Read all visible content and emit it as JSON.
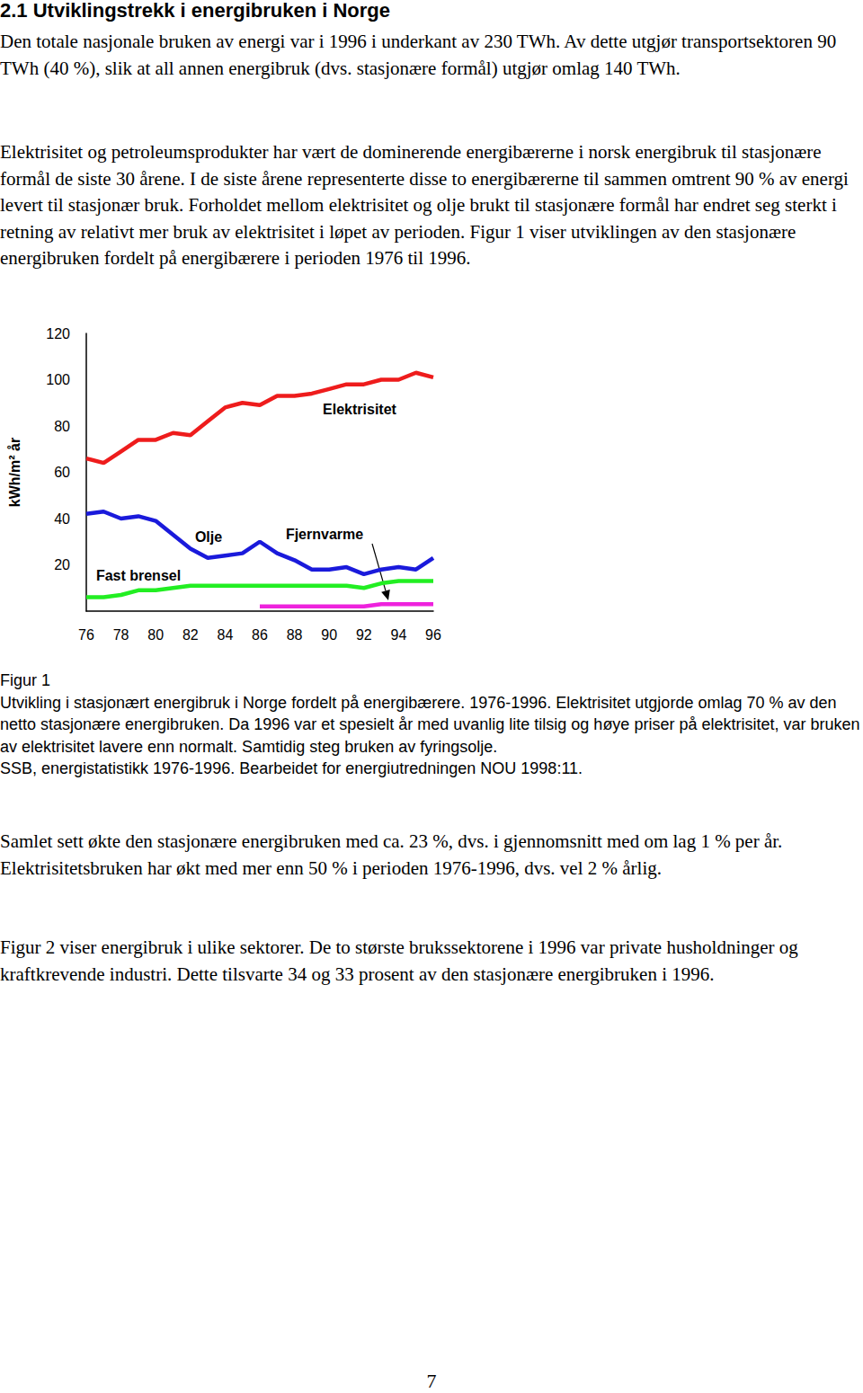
{
  "heading": "2.1 Utviklingstrekk i energibruken i Norge",
  "paragraphs_before": [
    "Den totale nasjonale bruken av energi var i 1996 i underkant av 230 TWh. Av dette utgjør transportsektoren 90 TWh (40 %), slik at all annen energibruk (dvs. stasjonære formål) utgjør omlag 140 TWh.",
    "Elektrisitet og petroleumsprodukter har vært de dominerende energibærerne i norsk energibruk til stasjonære formål de siste 30 årene. I de siste årene representerte disse to energibærerne til sammen omtrent 90 % av energi levert til stasjonær bruk. Forholdet mellom elektrisitet og olje brukt til stasjonære formål har endret seg sterkt i retning av relativt mer bruk av elektrisitet i løpet av perioden. Figur 1 viser utviklingen av den stasjonære energibruken fordelt på energibærere i perioden 1976 til 1996."
  ],
  "chart_data": {
    "type": "line",
    "y_label": "kWh/m² år",
    "categories": [
      "76",
      null,
      "78",
      null,
      "80",
      null,
      "82",
      null,
      "84",
      null,
      "86",
      null,
      "88",
      null,
      "90",
      null,
      "92",
      null,
      "94",
      null,
      "96"
    ],
    "series": [
      {
        "name": "Elektrisitet",
        "color": "#ee1c1c",
        "values": [
          66,
          64,
          69,
          74,
          74,
          77,
          76,
          82,
          88,
          90,
          89,
          93,
          93,
          94,
          96,
          98,
          98,
          100,
          100,
          103,
          101
        ]
      },
      {
        "name": "Olje",
        "color": "#1a1adb",
        "values": [
          42,
          43,
          40,
          41,
          39,
          33,
          27,
          23,
          24,
          25,
          30,
          25,
          22,
          18,
          18,
          19,
          16,
          18,
          19,
          18,
          23
        ]
      },
      {
        "name": "Fast brensel",
        "color": "#22ee22",
        "values": [
          6,
          6,
          7,
          9,
          9,
          10,
          11,
          11,
          11,
          11,
          11,
          11,
          11,
          11,
          11,
          11,
          10,
          12,
          13,
          13,
          13
        ]
      },
      {
        "name": "Fjernvarme",
        "color": "#ee22dd",
        "values": [
          null,
          null,
          null,
          null,
          null,
          null,
          null,
          null,
          null,
          null,
          2,
          2,
          2,
          2,
          2,
          2,
          2,
          3,
          3,
          3,
          3
        ]
      }
    ],
    "ylim": [
      0,
      120
    ],
    "yticks": [
      20,
      40,
      60,
      80,
      100,
      120
    ],
    "grid": false
  },
  "caption": [
    "Figur 1",
    "Utvikling i stasjonært energibruk i Norge fordelt på energibærere. 1976-1996. Elektrisitet utgjorde omlag 70 % av den netto stasjonære energibruken. Da 1996 var et spesielt år med uvanlig lite tilsig og høye priser på elektrisitet, var bruken av elektrisitet lavere enn normalt. Samtidig steg bruken av fyringsolje.",
    "SSB, energistatistikk 1976-1996. Bearbeidet for energiutredningen NOU 1998:11."
  ],
  "paragraphs_after": [
    "Samlet sett økte den stasjonære energibruken med ca. 23 %, dvs. i gjennomsnitt med om lag 1 % per år. Elektrisitetsbruken har økt med mer enn 50 % i perioden 1976-1996, dvs. vel 2 % årlig.",
    "Figur 2 viser energibruk i ulike sektorer. De to største brukssektorene i 1996 var private husholdninger og kraftkrevende industri. Dette tilsvarte 34 og 33 prosent av den stasjonære energibruken i 1996."
  ],
  "page_number": "7"
}
